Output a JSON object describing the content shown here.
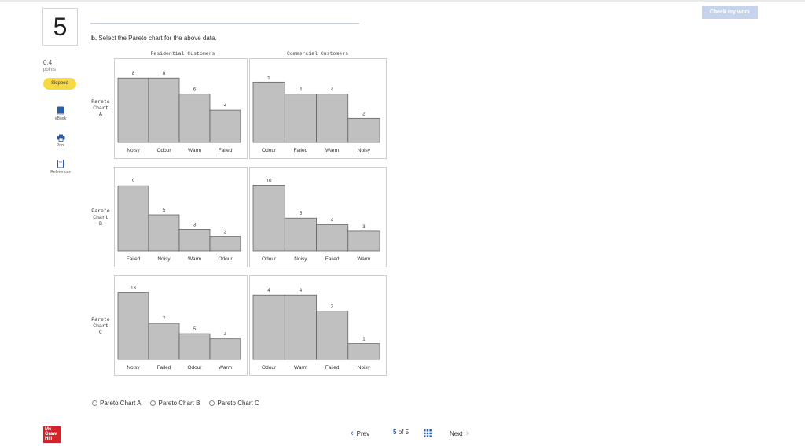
{
  "header": {
    "check_button": "Check my work"
  },
  "question": {
    "number": "5",
    "part_label": "b.",
    "prompt": "Select the Pareto chart for the above data."
  },
  "sidebar": {
    "points_value": "0.4",
    "points_unit": "points",
    "status_badge": "Skipped",
    "tools": [
      {
        "label": "eBook",
        "icon": "book-icon"
      },
      {
        "label": "Print",
        "icon": "printer-icon"
      },
      {
        "label": "References",
        "icon": "document-icon"
      }
    ]
  },
  "column_titles": [
    "Residential Customers",
    "Commercial Customers"
  ],
  "row_labels": [
    [
      "Pareto",
      "Chart",
      "A"
    ],
    [
      "Pareto",
      "Chart",
      "B"
    ],
    [
      "Pareto",
      "Chart",
      "C"
    ]
  ],
  "bar_color": "#c0c0c0",
  "chart_data": [
    {
      "type": "bar",
      "chart": "Pareto Chart A",
      "group": "Residential Customers",
      "categories": [
        "Noisy",
        "Odour",
        "Warm",
        "Failed"
      ],
      "values": [
        8,
        8,
        6,
        4
      ],
      "ylim": [
        0,
        9
      ]
    },
    {
      "type": "bar",
      "chart": "Pareto Chart A",
      "group": "Commercial Customers",
      "categories": [
        "Odour",
        "Failed",
        "Warm",
        "Noisy"
      ],
      "values": [
        5,
        4,
        4,
        2
      ],
      "ylim": [
        0,
        6
      ]
    },
    {
      "type": "bar",
      "chart": "Pareto Chart B",
      "group": "Residential Customers",
      "categories": [
        "Failed",
        "Noisy",
        "Warm",
        "Odour"
      ],
      "values": [
        9,
        5,
        3,
        2
      ],
      "ylim": [
        0,
        10
      ]
    },
    {
      "type": "bar",
      "chart": "Pareto Chart B",
      "group": "Commercial Customers",
      "categories": [
        "Odour",
        "Noisy",
        "Failed",
        "Warm"
      ],
      "values": [
        10,
        5,
        4,
        3
      ],
      "ylim": [
        0,
        11
      ]
    },
    {
      "type": "bar",
      "chart": "Pareto Chart C",
      "group": "Residential Customers",
      "categories": [
        "Noisy",
        "Failed",
        "Odour",
        "Warm"
      ],
      "values": [
        13,
        7,
        5,
        4
      ],
      "ylim": [
        0,
        14
      ]
    },
    {
      "type": "bar",
      "chart": "Pareto Chart C",
      "group": "Commercial Customers",
      "categories": [
        "Odour",
        "Warm",
        "Failed",
        "Noisy"
      ],
      "values": [
        4,
        4,
        3,
        1
      ],
      "ylim": [
        0,
        4.5
      ]
    }
  ],
  "answer_options": [
    "Pareto Chart A",
    "Pareto Chart B",
    "Pareto Chart C"
  ],
  "footer": {
    "logo_lines": [
      "Mc",
      "Graw",
      "Hill"
    ],
    "prev_label": "Prev",
    "next_label": "Next",
    "current_page": "5",
    "of_label": "of 5"
  }
}
